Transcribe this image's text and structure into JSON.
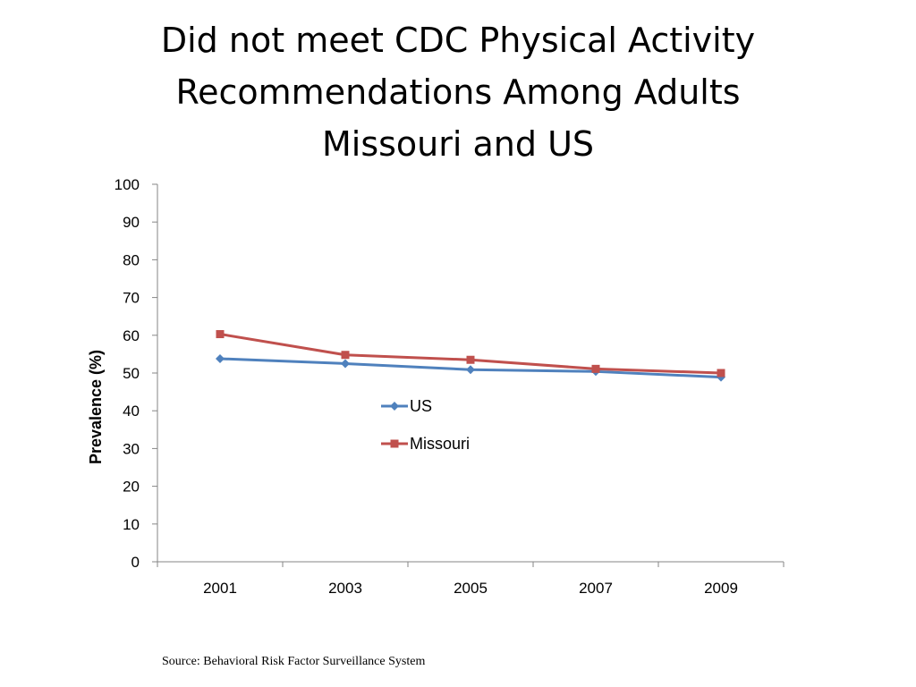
{
  "chart_data": {
    "type": "line",
    "title_lines": [
      "Did not meet CDC Physical Activity",
      "Recommendations Among Adults",
      "Missouri and US"
    ],
    "xlabel": "",
    "ylabel": "Prevalence (%)",
    "categories": [
      "2001",
      "2003",
      "2005",
      "2007",
      "2009"
    ],
    "ylim": [
      0,
      100
    ],
    "yticks": [
      0,
      10,
      20,
      30,
      40,
      50,
      60,
      70,
      80,
      90,
      100
    ],
    "grid": false,
    "legend_position": "center",
    "series": [
      {
        "name": "US",
        "values": [
          53.8,
          52.5,
          50.9,
          50.4,
          48.9
        ],
        "color": "#4F81BD",
        "marker": "diamond"
      },
      {
        "name": "Missouri",
        "values": [
          60.3,
          54.8,
          53.5,
          51.1,
          50.0
        ],
        "color": "#C0504D",
        "marker": "square"
      }
    ]
  },
  "footer": {
    "source": "Source: Behavioral Risk Factor Surveillance System"
  }
}
